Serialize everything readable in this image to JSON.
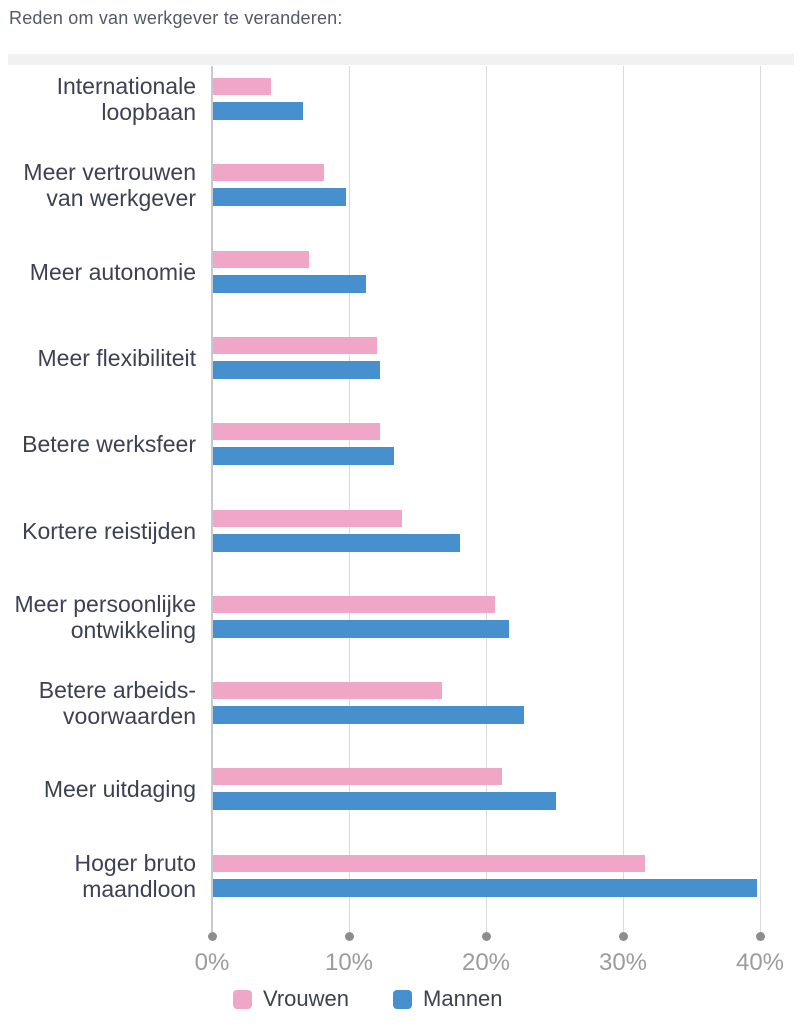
{
  "title": "Reden om van werkgever te veranderen:",
  "colors": {
    "pink": "#F0A6C6",
    "blue": "#4690CE",
    "gridline": "#DADADA",
    "axis_line": "#C6CAD0",
    "tick_dot": "#8D8D8D",
    "tick_text": "#9C9C9C",
    "label_text": "#3C4254",
    "title_text": "#525A6B",
    "divider": "#F1F1F1"
  },
  "chart_data": {
    "type": "bar",
    "orientation": "horizontal",
    "title": "Reden om van werkgever te veranderen:",
    "categories": [
      "Internationale loopbaan",
      "Meer vertrouwen van werkgever",
      "Meer autonomie",
      "Meer flexibiliteit",
      "Betere werksfeer",
      "Kortere reistijden",
      "Meer persoonlijke ontwikkeling",
      "Betere arbeidsvoorwaarden",
      "Meer uitdaging",
      "Hoger bruto maandloon"
    ],
    "category_lines": [
      [
        "Internationale",
        "loopbaan"
      ],
      [
        "Meer vertrouwen",
        "van werkgever"
      ],
      [
        "Meer autonomie"
      ],
      [
        "Meer flexibiliteit"
      ],
      [
        "Betere werksfeer"
      ],
      [
        "Kortere reistijden"
      ],
      [
        "Meer persoonlijke",
        "ontwikkeling"
      ],
      [
        "Betere arbeids-",
        "voorwaarden"
      ],
      [
        "Meer uitdaging"
      ],
      [
        "Hoger bruto",
        "maandloon"
      ]
    ],
    "series": [
      {
        "name": "Vrouwen",
        "color": "#F0A6C6",
        "values": [
          4.2,
          8.1,
          7.0,
          12.0,
          12.2,
          13.8,
          20.6,
          16.7,
          21.1,
          31.5
        ]
      },
      {
        "name": "Mannen",
        "color": "#4690CE",
        "values": [
          6.6,
          9.7,
          11.2,
          12.2,
          13.2,
          18.0,
          21.6,
          22.7,
          25.0,
          39.7
        ]
      }
    ],
    "x_ticks": [
      "0%",
      "10%",
      "20%",
      "30%",
      "40%"
    ],
    "x_tick_values": [
      0,
      10,
      20,
      30,
      40
    ],
    "xlim": [
      0,
      40
    ],
    "grid": true,
    "legend_position": "bottom"
  }
}
